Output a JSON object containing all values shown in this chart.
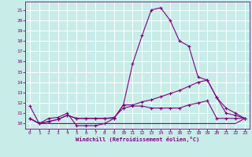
{
  "xlabel": "Windchill (Refroidissement éolien,°C)",
  "background_color": "#c8ece8",
  "grid_color": "#b0dcd8",
  "line_color": "#800080",
  "xlim": [
    -0.5,
    23.5
  ],
  "ylim": [
    9.5,
    21.8
  ],
  "xticks": [
    0,
    1,
    2,
    3,
    4,
    5,
    6,
    7,
    8,
    9,
    10,
    11,
    12,
    13,
    14,
    15,
    16,
    17,
    18,
    19,
    20,
    21,
    22,
    23
  ],
  "yticks": [
    10,
    11,
    12,
    13,
    14,
    15,
    16,
    17,
    18,
    19,
    20,
    21
  ],
  "line1_x": [
    0,
    1,
    2,
    3,
    4,
    5,
    6,
    7,
    8,
    9,
    10,
    11,
    12,
    13,
    14,
    15,
    16,
    17,
    18,
    19,
    20,
    21,
    22,
    23
  ],
  "line1_y": [
    11.7,
    10.0,
    10.5,
    10.6,
    11.0,
    9.8,
    9.8,
    9.8,
    10.0,
    10.5,
    11.8,
    15.8,
    18.5,
    21.0,
    21.2,
    20.0,
    18.0,
    17.5,
    14.5,
    14.2,
    12.5,
    11.0,
    10.8,
    10.5
  ],
  "line2_x": [
    0,
    1,
    2,
    3,
    4,
    5,
    6,
    7,
    8,
    9,
    10,
    11,
    12,
    13,
    14,
    15,
    16,
    17,
    18,
    19,
    20,
    21,
    22,
    23
  ],
  "line2_y": [
    10.5,
    10.0,
    10.2,
    10.4,
    10.8,
    10.5,
    10.5,
    10.5,
    10.5,
    10.5,
    11.8,
    11.8,
    12.1,
    12.3,
    12.6,
    12.9,
    13.2,
    13.6,
    14.0,
    14.2,
    12.5,
    11.5,
    11.0,
    10.5
  ],
  "line3_x": [
    0,
    1,
    2,
    3,
    4,
    5,
    6,
    7,
    8,
    9,
    10,
    11,
    12,
    13,
    14,
    15,
    16,
    17,
    18,
    19,
    20,
    21,
    22,
    23
  ],
  "line3_y": [
    10.5,
    10.0,
    10.2,
    10.4,
    10.8,
    10.5,
    10.5,
    10.5,
    10.5,
    10.6,
    11.5,
    11.7,
    11.7,
    11.5,
    11.5,
    11.5,
    11.5,
    11.8,
    12.0,
    12.2,
    10.5,
    10.5,
    10.5,
    10.5
  ],
  "line4_x": [
    0,
    1,
    2,
    3,
    4,
    5,
    6,
    7,
    8,
    9,
    10,
    11,
    12,
    13,
    14,
    15,
    16,
    17,
    18,
    19,
    20,
    21,
    22,
    23
  ],
  "line4_y": [
    10.5,
    10.0,
    10.0,
    10.0,
    10.0,
    10.0,
    10.0,
    10.0,
    10.0,
    10.0,
    10.0,
    10.0,
    10.0,
    10.0,
    10.0,
    10.0,
    10.0,
    10.0,
    10.0,
    10.0,
    10.0,
    10.0,
    10.0,
    10.5
  ]
}
